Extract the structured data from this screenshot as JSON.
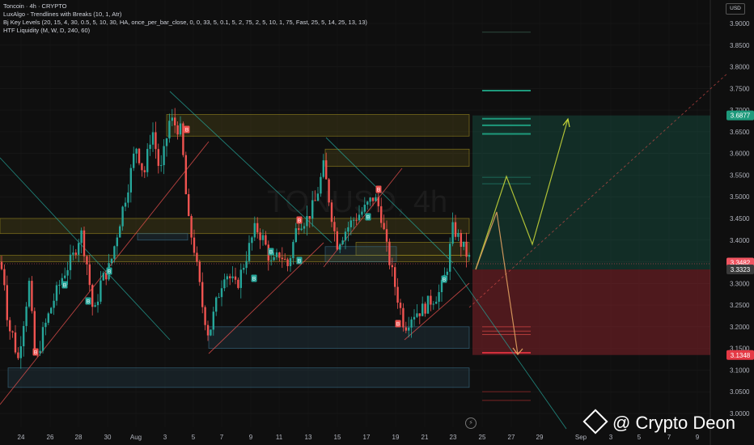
{
  "legend": {
    "line1": "Toncoin · 4h · CRYPTO",
    "line2": "LuxAlgo - Trendlines with Breaks (10, 1, Atr)",
    "line3": "Bj Key Levels (20, 15, 4, 30, 0.5, 5, 10, 30, HA, once_per_bar_close, 0, 0, 33, 5, 0.1, 5, 2, 75, 2, 5, 10, 1, 75, Fast, 25, 5, 14, 25, 13, 13)",
    "line4": "HTF Liquidity (M, W, D, 240, 60)"
  },
  "currency_button": "USD",
  "watermark_text": "@ Crypto Deon",
  "symbol_watermark": "TONUSD, 4h",
  "colors": {
    "bg": "#0f0f0f",
    "up": "#26a69a",
    "down": "#ef5350",
    "target": "#1e9a7c",
    "stop": "#d32f3c",
    "current": "#f05561",
    "path": "#cddc39"
  },
  "chart_data": {
    "type": "candlestick",
    "title": "Toncoin · 4h · CRYPTO",
    "x_ticks": [
      "24",
      "26",
      "28",
      "30",
      "Aug",
      "3",
      "5",
      "7",
      "9",
      "11",
      "13",
      "15",
      "17",
      "19",
      "21",
      "23",
      "25",
      "27",
      "29",
      "Sep",
      "3",
      "5",
      "7",
      "9"
    ],
    "y_ticks": [
      "3.9000",
      "3.8500",
      "3.8000",
      "3.7500",
      "3.7000",
      "3.6500",
      "3.6000",
      "3.5500",
      "3.5000",
      "3.4500",
      "3.4000",
      "3.3500",
      "3.3000",
      "3.2500",
      "3.2000",
      "3.1500",
      "3.1000",
      "3.0500",
      "3.0000"
    ],
    "ylim": [
      3.0,
      3.9
    ],
    "price_labels": [
      {
        "text": "3.6877",
        "value": 3.6877,
        "kind": "target"
      },
      {
        "text": "3.3482",
        "value": 3.3482,
        "kind": "current"
      },
      {
        "text": "3.3323",
        "value": 3.3323,
        "kind": "entry"
      },
      {
        "text": "3.1348",
        "value": 3.1348,
        "kind": "stop"
      }
    ],
    "target_price": 3.6877,
    "entry_price": 3.3323,
    "stop_price": 3.1348,
    "current_price": 3.3482,
    "zones": [
      {
        "low": 3.64,
        "high": 3.69,
        "type": "supply",
        "from": "Aug 3",
        "to": "Aug 24"
      },
      {
        "low": 3.57,
        "high": 3.61,
        "type": "supply",
        "from": "Aug 14",
        "to": "Aug 24"
      },
      {
        "low": 3.415,
        "high": 3.45,
        "type": "supply",
        "from": "Jul 23",
        "to": "Aug 24"
      },
      {
        "low": 3.35,
        "high": 3.365,
        "type": "supply",
        "from": "Jul 23",
        "to": "Aug 24"
      },
      {
        "low": 3.365,
        "high": 3.395,
        "type": "supply",
        "from": "Aug 17",
        "to": "Aug 24"
      },
      {
        "low": 3.4,
        "high": 3.415,
        "type": "demand",
        "from": "Jul 31",
        "to": "Aug 5"
      },
      {
        "low": 3.35,
        "high": 3.385,
        "type": "demand",
        "from": "Aug 14",
        "to": "Aug 19"
      },
      {
        "low": 3.15,
        "high": 3.2,
        "type": "demand",
        "from": "Aug 6",
        "to": "Aug 24"
      },
      {
        "low": 3.06,
        "high": 3.105,
        "type": "demand",
        "from": "Jul 24",
        "to": "Aug 24"
      }
    ]
  }
}
